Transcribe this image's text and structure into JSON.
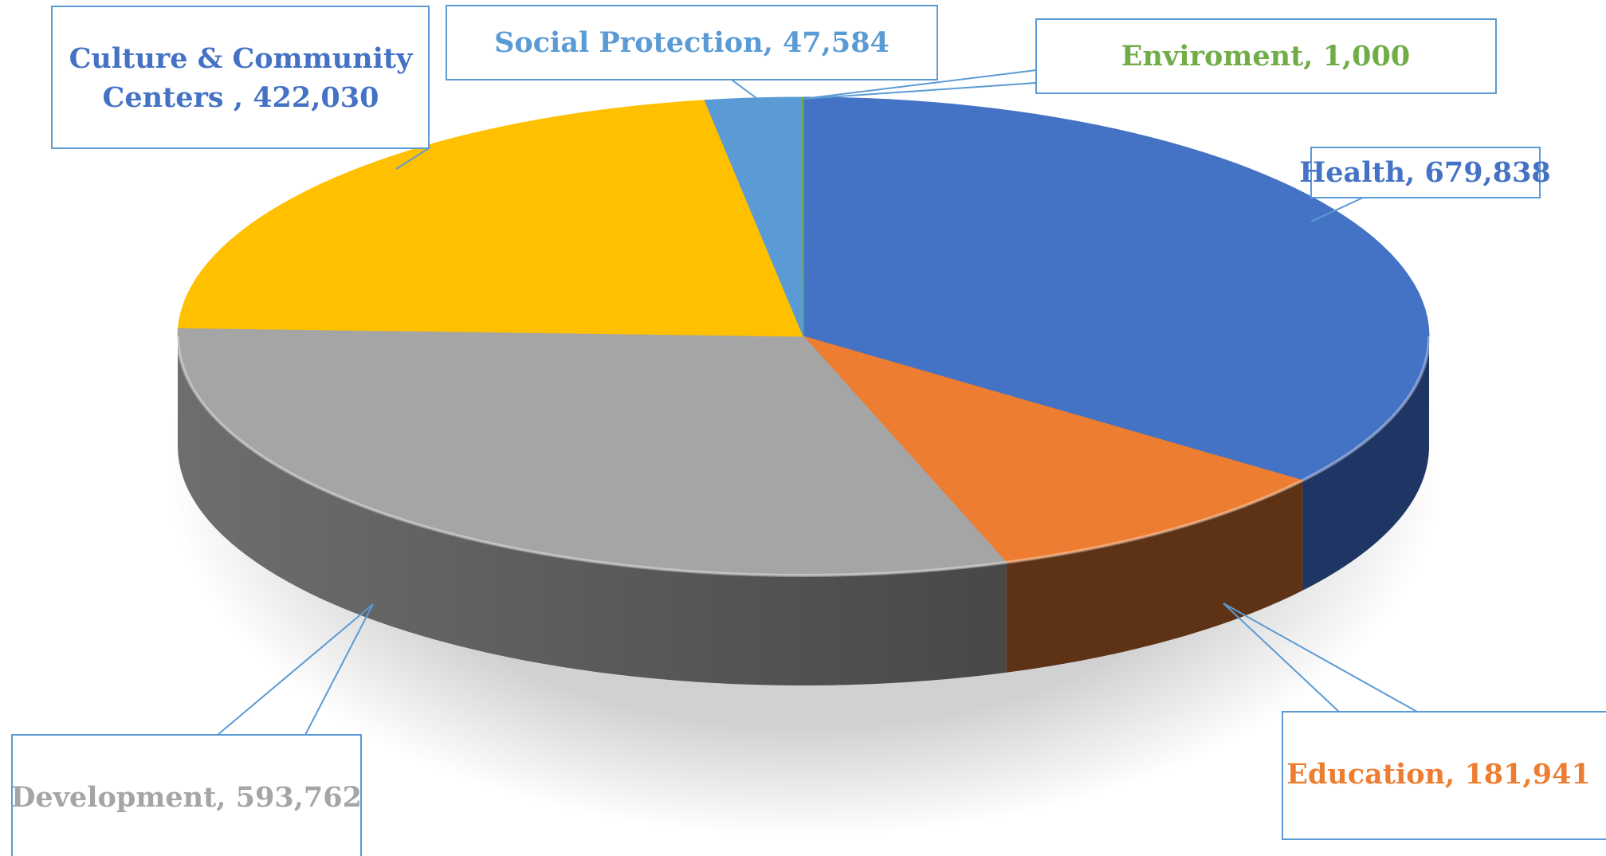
{
  "chart_data": {
    "type": "pie",
    "title": "",
    "slices": [
      {
        "label": "Health",
        "value": 679838,
        "display": "679,838",
        "color": "#4472C4",
        "side_color": "#1F3564"
      },
      {
        "label": "Education",
        "value": 181941,
        "display": "181,941",
        "color": "#ED7D31",
        "side_color": "#5E3215"
      },
      {
        "label": "Development",
        "value": 593762,
        "display": "593,762",
        "color": "#A5A5A5",
        "side_color": "#6E6E6E"
      },
      {
        "label": "Culture & Community Centers ",
        "value": 422030,
        "display": "422,030",
        "color": "#FFC000",
        "side_color": "#7F6000"
      },
      {
        "label": "Social Protection",
        "value": 47584,
        "display": "47,584",
        "color": "#5B9BD5",
        "side_color": "#2E5A86"
      },
      {
        "label": "Enviroment",
        "value": 1000,
        "display": "1,000",
        "color": "#70AD47",
        "side_color": "#375A23"
      }
    ],
    "labels": {
      "health": "Health, 679,838",
      "education": "Education, 181,941",
      "development": "Development, 593,762",
      "culture_line1": "Culture & Community",
      "culture_line2": "Centers , 422,030",
      "social": "Social Protection, 47,584",
      "environment": "Enviroment, 1,000"
    },
    "callout_border_color": "#5B9BD5"
  }
}
